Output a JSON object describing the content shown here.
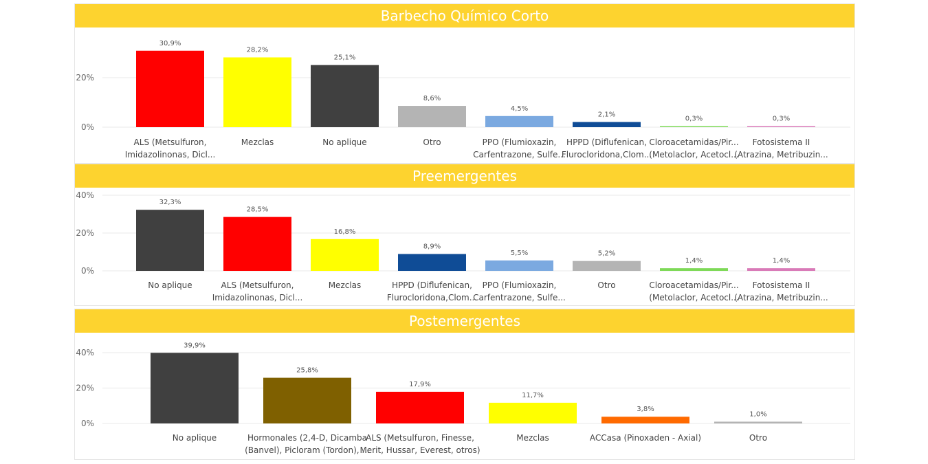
{
  "chart_data": [
    {
      "type": "bar",
      "title": "Barbecho Químico Corto",
      "ylim": [
        0,
        30.9
      ],
      "yticks": [
        "0%",
        "20%"
      ],
      "ytick_values": [
        0,
        20
      ],
      "categories": [
        [
          "ALS (Metsulfuron,",
          "Imidazolinonas, Dicl..."
        ],
        [
          "Mezclas"
        ],
        [
          "No aplique"
        ],
        [
          "Otro"
        ],
        [
          "PPO (Flumioxazin,",
          "Carfentrazone, Sulfe..."
        ],
        [
          "HPPD (Diflufenican,",
          "Flurocloridona,Clom..."
        ],
        [
          "Cloroacetamidas/Pir...",
          "(Metolaclor, Acetocl..."
        ],
        [
          "Fotosistema II",
          "(Atrazina, Metribuzin..."
        ]
      ],
      "values": [
        30.9,
        28.2,
        25.1,
        8.6,
        4.5,
        2.1,
        0.3,
        0.3
      ],
      "labels": [
        "30,9%",
        "28,2%",
        "25,1%",
        "8,6%",
        "4,5%",
        "2,1%",
        "0,3%",
        "0,3%"
      ],
      "colors": [
        "#FF0000",
        "#FFFF00",
        "#404040",
        "#B4B4B4",
        "#7BA9E0",
        "#0F4C96",
        "#7ED957",
        "#D97AB8"
      ],
      "grid": true
    },
    {
      "type": "bar",
      "title": "Preemergentes",
      "ylim": [
        0,
        40
      ],
      "yticks": [
        "0%",
        "20%",
        "40%"
      ],
      "ytick_values": [
        0,
        20,
        40
      ],
      "categories": [
        [
          "No aplique"
        ],
        [
          "ALS (Metsulfuron,",
          "Imidazolinonas, Dicl..."
        ],
        [
          "Mezclas"
        ],
        [
          "HPPD (Diflufenican,",
          "Flurocloridona,Clom..."
        ],
        [
          "PPO (Flumioxazin,",
          "Carfentrazone, Sulfe..."
        ],
        [
          "Otro"
        ],
        [
          "Cloroacetamidas/Pir...",
          "(Metolaclor, Acetocl..."
        ],
        [
          "Fotosistema II",
          "(Atrazina, Metribuzin..."
        ]
      ],
      "values": [
        32.3,
        28.5,
        16.8,
        8.9,
        5.5,
        5.2,
        1.4,
        1.4
      ],
      "labels": [
        "32,3%",
        "28,5%",
        "16,8%",
        "8,9%",
        "5,5%",
        "5,2%",
        "1,4%",
        "1,4%"
      ],
      "colors": [
        "#404040",
        "#FF0000",
        "#FFFF00",
        "#0F4C96",
        "#7BA9E0",
        "#B4B4B4",
        "#7ED957",
        "#D97AB8"
      ],
      "grid": true
    },
    {
      "type": "bar",
      "title": "Postemergentes",
      "ylim": [
        0,
        40
      ],
      "yticks": [
        "0%",
        "20%",
        "40%"
      ],
      "ytick_values": [
        0,
        20,
        40
      ],
      "categories": [
        [
          "No aplique"
        ],
        [
          "Hormonales (2,4-D, Dicamba",
          "(Banvel), Picloram (Tordon), ..."
        ],
        [
          "ALS (Metsulfuron, Finesse,",
          "Merit, Hussar, Everest, otros)"
        ],
        [
          "Mezclas"
        ],
        [
          "ACCasa (Pinoxaden - Axial)"
        ],
        [
          "Otro"
        ]
      ],
      "values": [
        39.9,
        25.8,
        17.9,
        11.7,
        3.8,
        1.0
      ],
      "labels": [
        "39,9%",
        "25,8%",
        "17,9%",
        "11,7%",
        "3,8%",
        "1,0%"
      ],
      "colors": [
        "#404040",
        "#7F6000",
        "#FF0000",
        "#FFFF00",
        "#FF6A00",
        "#B4B4B4"
      ],
      "grid": true
    }
  ]
}
